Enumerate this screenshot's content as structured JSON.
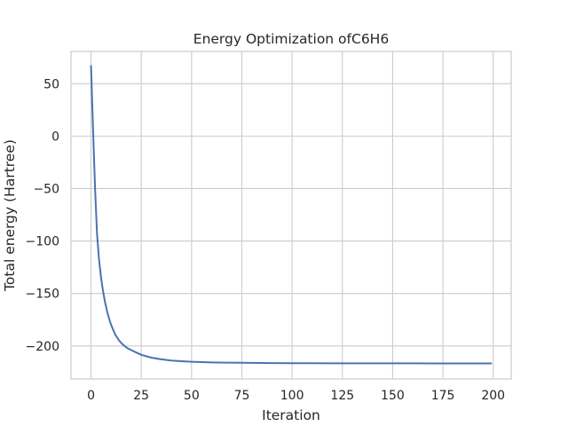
{
  "chart_data": {
    "type": "line",
    "title": "Energy Optimization ofC6H6",
    "xlabel": "Iteration",
    "ylabel": "Total energy (Hartree)",
    "xlim": [
      -9.95,
      208.95
    ],
    "ylim": [
      -231.5,
      80.7
    ],
    "xticks": [
      0,
      25,
      50,
      75,
      100,
      125,
      150,
      175,
      200
    ],
    "yticks": [
      -200,
      -150,
      -100,
      -50,
      0,
      50
    ],
    "xtick_labels": [
      "0",
      "25",
      "50",
      "75",
      "100",
      "125",
      "150",
      "175",
      "200"
    ],
    "ytick_labels": [
      "−200",
      "−150",
      "−100",
      "−50",
      "0",
      "50"
    ],
    "grid": true,
    "line_color": "#4c72b0",
    "series": [
      {
        "x": [
          0,
          1,
          2,
          3,
          4,
          5,
          6,
          7,
          8,
          9,
          10,
          12,
          14,
          16,
          18,
          20,
          25,
          30,
          35,
          40,
          45,
          50,
          60,
          70,
          80,
          90,
          100,
          110,
          120,
          130,
          140,
          150,
          160,
          170,
          180,
          190,
          199
        ],
        "y": [
          67.0,
          8.0,
          -49.0,
          -93.5,
          -118.0,
          -135.0,
          -148.0,
          -158.5,
          -167.0,
          -174.0,
          -180.0,
          -189.0,
          -195.0,
          -199.0,
          -202.0,
          -204.0,
          -208.5,
          -211.2,
          -212.8,
          -213.9,
          -214.6,
          -215.1,
          -215.7,
          -216.0,
          -216.2,
          -216.35,
          -216.45,
          -216.5,
          -216.55,
          -216.58,
          -216.6,
          -216.62,
          -216.63,
          -216.64,
          -216.65,
          -216.65,
          -216.65
        ]
      }
    ]
  }
}
